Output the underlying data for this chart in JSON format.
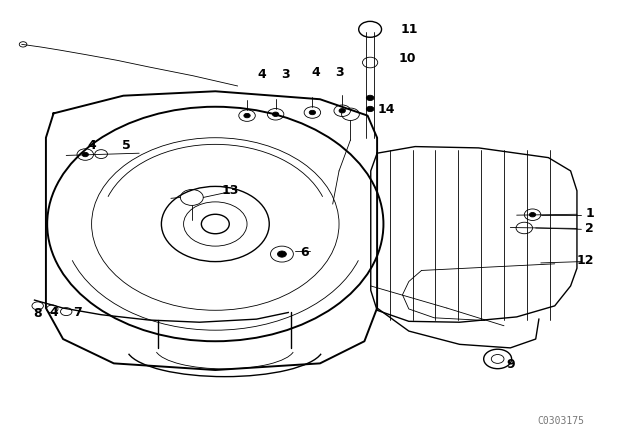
{
  "background_color": "#ffffff",
  "line_color": "#000000",
  "label_color": "#000000",
  "figure_width": 6.4,
  "figure_height": 4.48,
  "dpi": 100,
  "watermark": "C0303175",
  "label_fontsize": 9
}
